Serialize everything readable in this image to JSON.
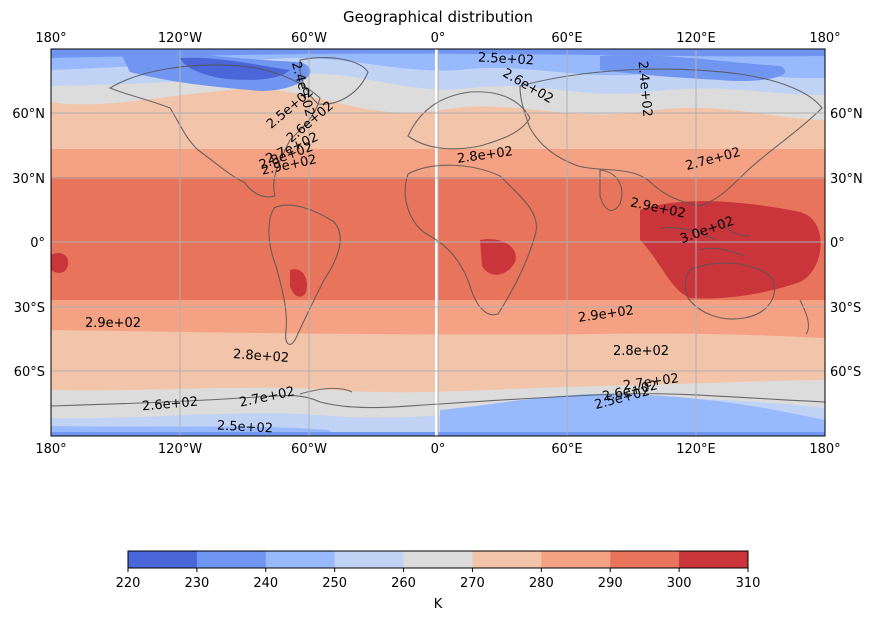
{
  "title": "Geographical distribution",
  "axes": {
    "x_ticks": [
      "180°",
      "120°W",
      "60°W",
      "0°",
      "60°E",
      "120°E",
      "180°"
    ],
    "y_ticks": [
      "60°N",
      "30°N",
      "0°",
      "30°S",
      "60°S"
    ]
  },
  "colorbar": {
    "label": "K",
    "ticks": [
      "220",
      "230",
      "240",
      "250",
      "260",
      "270",
      "280",
      "290",
      "300",
      "310"
    ],
    "colors": [
      "#4a66d8",
      "#7196f2",
      "#98b9fb",
      "#c1d3f5",
      "#dcdcdc",
      "#f2c4aa",
      "#f5a183",
      "#e7745b",
      "#c9353a"
    ]
  },
  "contour_labels": [
    {
      "text": "2.5e+02"
    },
    {
      "text": "2.6e+02"
    },
    {
      "text": "2.4e+02"
    },
    {
      "text": "2.4e+02"
    },
    {
      "text": "2.5e+02"
    },
    {
      "text": "2.6e+02"
    },
    {
      "text": "2.7e+02"
    },
    {
      "text": "2.8e+02"
    },
    {
      "text": "2.9e+02"
    },
    {
      "text": "2.8e+02"
    },
    {
      "text": "2.7e+02"
    },
    {
      "text": "2.9e+02"
    },
    {
      "text": "3.0e+02"
    },
    {
      "text": "2.9e+02"
    },
    {
      "text": "2.9e+02"
    },
    {
      "text": "2.8e+02"
    },
    {
      "text": "2.8e+02"
    },
    {
      "text": "2.7e+02"
    },
    {
      "text": "2.6e+02"
    },
    {
      "text": "2.5e+02"
    },
    {
      "text": "2.7e+02"
    },
    {
      "text": "2.6e+02"
    },
    {
      "text": "2.5e+02"
    }
  ]
}
